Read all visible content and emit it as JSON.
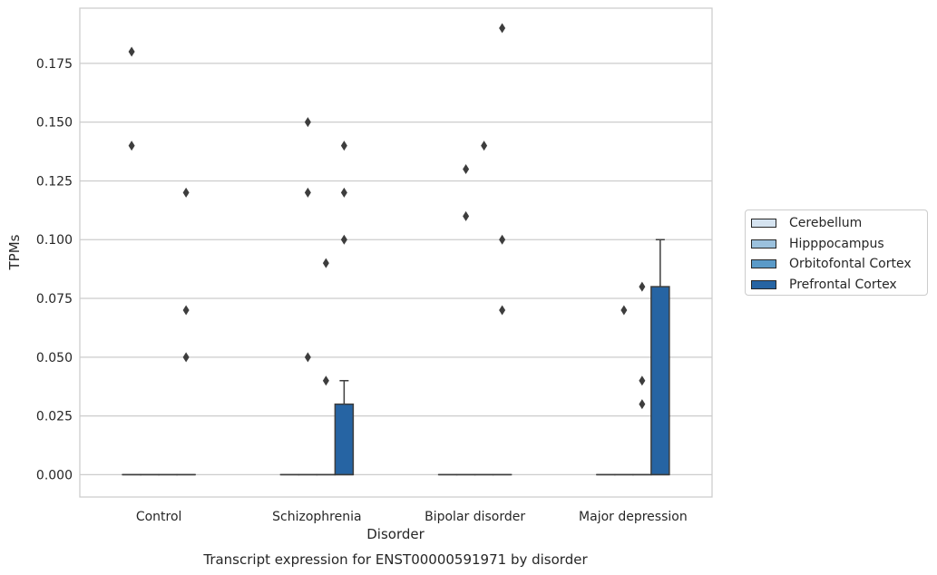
{
  "chart_data": {
    "type": "box",
    "title": "Transcript expression for ENST00000591971 by disorder",
    "xlabel": "Disorder",
    "ylabel": "TPMs",
    "categories": [
      "Control",
      "Schizophrenia",
      "Bipolar disorder",
      "Major depression"
    ],
    "ylim": [
      -0.0095,
      0.1985
    ],
    "yticks": [
      "0.000",
      "0.025",
      "0.050",
      "0.075",
      "0.100",
      "0.125",
      "0.150",
      "0.175"
    ],
    "grid": true,
    "legend_position": "right",
    "series": [
      {
        "name": "Cerebellum",
        "color": "#d5e3f0",
        "boxes": [
          {
            "q1": 0,
            "median": 0,
            "q3": 0,
            "whisker_low": 0,
            "whisker_high": 0,
            "outliers": [
              0.18,
              0.14
            ]
          },
          {
            "q1": 0,
            "median": 0,
            "q3": 0,
            "whisker_low": 0,
            "whisker_high": 0,
            "outliers": []
          },
          {
            "q1": 0,
            "median": 0,
            "q3": 0,
            "whisker_low": 0,
            "whisker_high": 0,
            "outliers": []
          },
          {
            "q1": 0,
            "median": 0,
            "q3": 0,
            "whisker_low": 0,
            "whisker_high": 0,
            "outliers": []
          }
        ]
      },
      {
        "name": "Hipppocampus",
        "color": "#9bc1dd",
        "boxes": [
          {
            "q1": 0,
            "median": 0,
            "q3": 0,
            "whisker_low": 0,
            "whisker_high": 0,
            "outliers": []
          },
          {
            "q1": 0,
            "median": 0,
            "q3": 0,
            "whisker_low": 0,
            "whisker_high": 0,
            "outliers": [
              0.15,
              0.12,
              0.05
            ]
          },
          {
            "q1": 0,
            "median": 0,
            "q3": 0,
            "whisker_low": 0,
            "whisker_high": 0,
            "outliers": [
              0.13,
              0.11
            ]
          },
          {
            "q1": 0,
            "median": 0,
            "q3": 0,
            "whisker_low": 0,
            "whisker_high": 0,
            "outliers": [
              0.07
            ]
          }
        ]
      },
      {
        "name": "Orbitofontal Cortex",
        "color": "#5a9ac8",
        "boxes": [
          {
            "q1": 0,
            "median": 0,
            "q3": 0,
            "whisker_low": 0,
            "whisker_high": 0,
            "outliers": []
          },
          {
            "q1": 0,
            "median": 0,
            "q3": 0,
            "whisker_low": 0,
            "whisker_high": 0,
            "outliers": [
              0.09,
              0.04
            ]
          },
          {
            "q1": 0,
            "median": 0,
            "q3": 0,
            "whisker_low": 0,
            "whisker_high": 0,
            "outliers": [
              0.14
            ]
          },
          {
            "q1": 0,
            "median": 0,
            "q3": 0,
            "whisker_low": 0,
            "whisker_high": 0,
            "outliers": [
              0.08,
              0.04,
              0.03
            ]
          }
        ]
      },
      {
        "name": "Prefrontal Cortex",
        "color": "#2664a3",
        "boxes": [
          {
            "q1": 0,
            "median": 0,
            "q3": 0,
            "whisker_low": 0,
            "whisker_high": 0,
            "outliers": [
              0.12,
              0.07,
              0.05
            ]
          },
          {
            "q1": 0,
            "median": 0,
            "q3": 0.03,
            "whisker_low": 0,
            "whisker_high": 0.04,
            "outliers": [
              0.14,
              0.12,
              0.1
            ]
          },
          {
            "q1": 0,
            "median": 0,
            "q3": 0,
            "whisker_low": 0,
            "whisker_high": 0,
            "outliers": [
              0.19,
              0.1,
              0.07
            ]
          },
          {
            "q1": 0,
            "median": 0,
            "q3": 0.08,
            "whisker_low": 0,
            "whisker_high": 0.1,
            "outliers": []
          }
        ]
      }
    ]
  }
}
